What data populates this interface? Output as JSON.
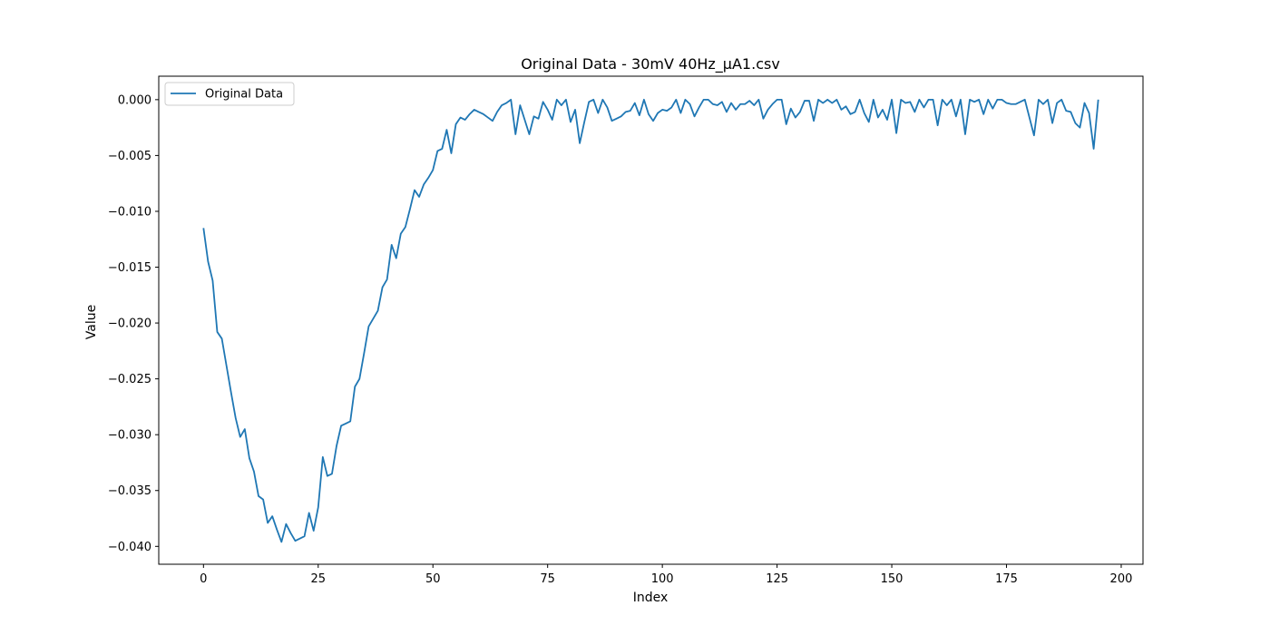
{
  "chart_data": {
    "type": "line",
    "title": "Original Data - 30mV 40Hz_μA1.csv",
    "xlabel": "Index",
    "ylabel": "Value",
    "xlim": [
      -9.75,
      204.75
    ],
    "ylim": [
      -0.0416,
      0.0021
    ],
    "xticks": [
      0,
      25,
      50,
      75,
      100,
      125,
      150,
      175,
      200
    ],
    "xtick_labels": [
      "0",
      "25",
      "50",
      "75",
      "100",
      "125",
      "150",
      "175",
      "200"
    ],
    "yticks": [
      0.0,
      -0.005,
      -0.01,
      -0.015,
      -0.02,
      -0.025,
      -0.03,
      -0.035,
      -0.04
    ],
    "ytick_labels": [
      "0.000",
      "−0.005",
      "−0.010",
      "−0.015",
      "−0.020",
      "−0.025",
      "−0.030",
      "−0.035",
      "−0.040"
    ],
    "grid": false,
    "legend_position": "top-left",
    "series": [
      {
        "name": "Original Data",
        "color": "#1f77b4",
        "y": [
          -0.0115,
          -0.0145,
          -0.0162,
          -0.0208,
          -0.0214,
          -0.0238,
          -0.0262,
          -0.0285,
          -0.0302,
          -0.0295,
          -0.0321,
          -0.0333,
          -0.0355,
          -0.0358,
          -0.0379,
          -0.0373,
          -0.0385,
          -0.0396,
          -0.038,
          -0.0388,
          -0.0395,
          -0.0393,
          -0.0391,
          -0.037,
          -0.0386,
          -0.0365,
          -0.032,
          -0.0337,
          -0.0335,
          -0.031,
          -0.0292,
          -0.029,
          -0.0288,
          -0.0257,
          -0.025,
          -0.0227,
          -0.0203,
          -0.0196,
          -0.0189,
          -0.0168,
          -0.0161,
          -0.013,
          -0.0142,
          -0.012,
          -0.0114,
          -0.0098,
          -0.0081,
          -0.0087,
          -0.0076,
          -0.007,
          -0.0063,
          -0.0046,
          -0.0044,
          -0.0027,
          -0.0048,
          -0.0022,
          -0.0016,
          -0.0018,
          -0.0013,
          -0.0009,
          -0.0011,
          -0.0013,
          -0.0016,
          -0.0019,
          -0.0011,
          -0.0005,
          -0.0003,
          0.0,
          -0.0031,
          -0.0005,
          -0.0018,
          -0.0031,
          -0.0015,
          -0.0017,
          -0.0002,
          -0.0009,
          -0.0018,
          0.0,
          -0.0005,
          0.0,
          -0.002,
          -0.0009,
          -0.0039,
          -0.002,
          -0.0002,
          0.0,
          -0.0012,
          0.0,
          -0.0007,
          -0.0019,
          -0.0017,
          -0.0015,
          -0.0011,
          -0.001,
          -0.0003,
          -0.0014,
          0.0,
          -0.0013,
          -0.0019,
          -0.0012,
          -0.0009,
          -0.001,
          -0.0007,
          0.0,
          -0.0012,
          0.0,
          -0.0004,
          -0.0015,
          -0.0007,
          0.0,
          0.0,
          -0.0004,
          -0.0005,
          -0.0002,
          -0.0011,
          -0.0003,
          -0.0009,
          -0.0004,
          -0.0004,
          -0.0001,
          -0.0005,
          0.0,
          -0.0017,
          -0.0009,
          -0.0004,
          0.0,
          0.0,
          -0.0022,
          -0.0008,
          -0.0016,
          -0.0011,
          -0.0001,
          -0.0001,
          -0.0019,
          0.0,
          -0.0003,
          0.0,
          -0.0003,
          0.0,
          -0.0009,
          -0.0006,
          -0.0013,
          -0.0011,
          0.0,
          -0.0012,
          -0.002,
          0.0,
          -0.0016,
          -0.0009,
          -0.0018,
          0.0,
          -0.003,
          0.0,
          -0.0003,
          -0.0002,
          -0.0011,
          0.0,
          -0.0007,
          0.0,
          0.0,
          -0.0023,
          0.0,
          -0.0005,
          0.0,
          -0.0015,
          0.0,
          -0.0031,
          0.0,
          -0.0002,
          0.0,
          -0.0013,
          0.0,
          -0.0008,
          0.0,
          0.0,
          -0.0003,
          -0.0004,
          -0.0004,
          -0.0002,
          0.0,
          -0.0016,
          -0.0032,
          0.0,
          -0.0004,
          0.0,
          -0.0021,
          -0.0003,
          0.0,
          -0.001,
          -0.0011,
          -0.0021,
          -0.0025,
          -0.0003,
          -0.0012,
          -0.0044,
          0.0
        ]
      }
    ]
  }
}
